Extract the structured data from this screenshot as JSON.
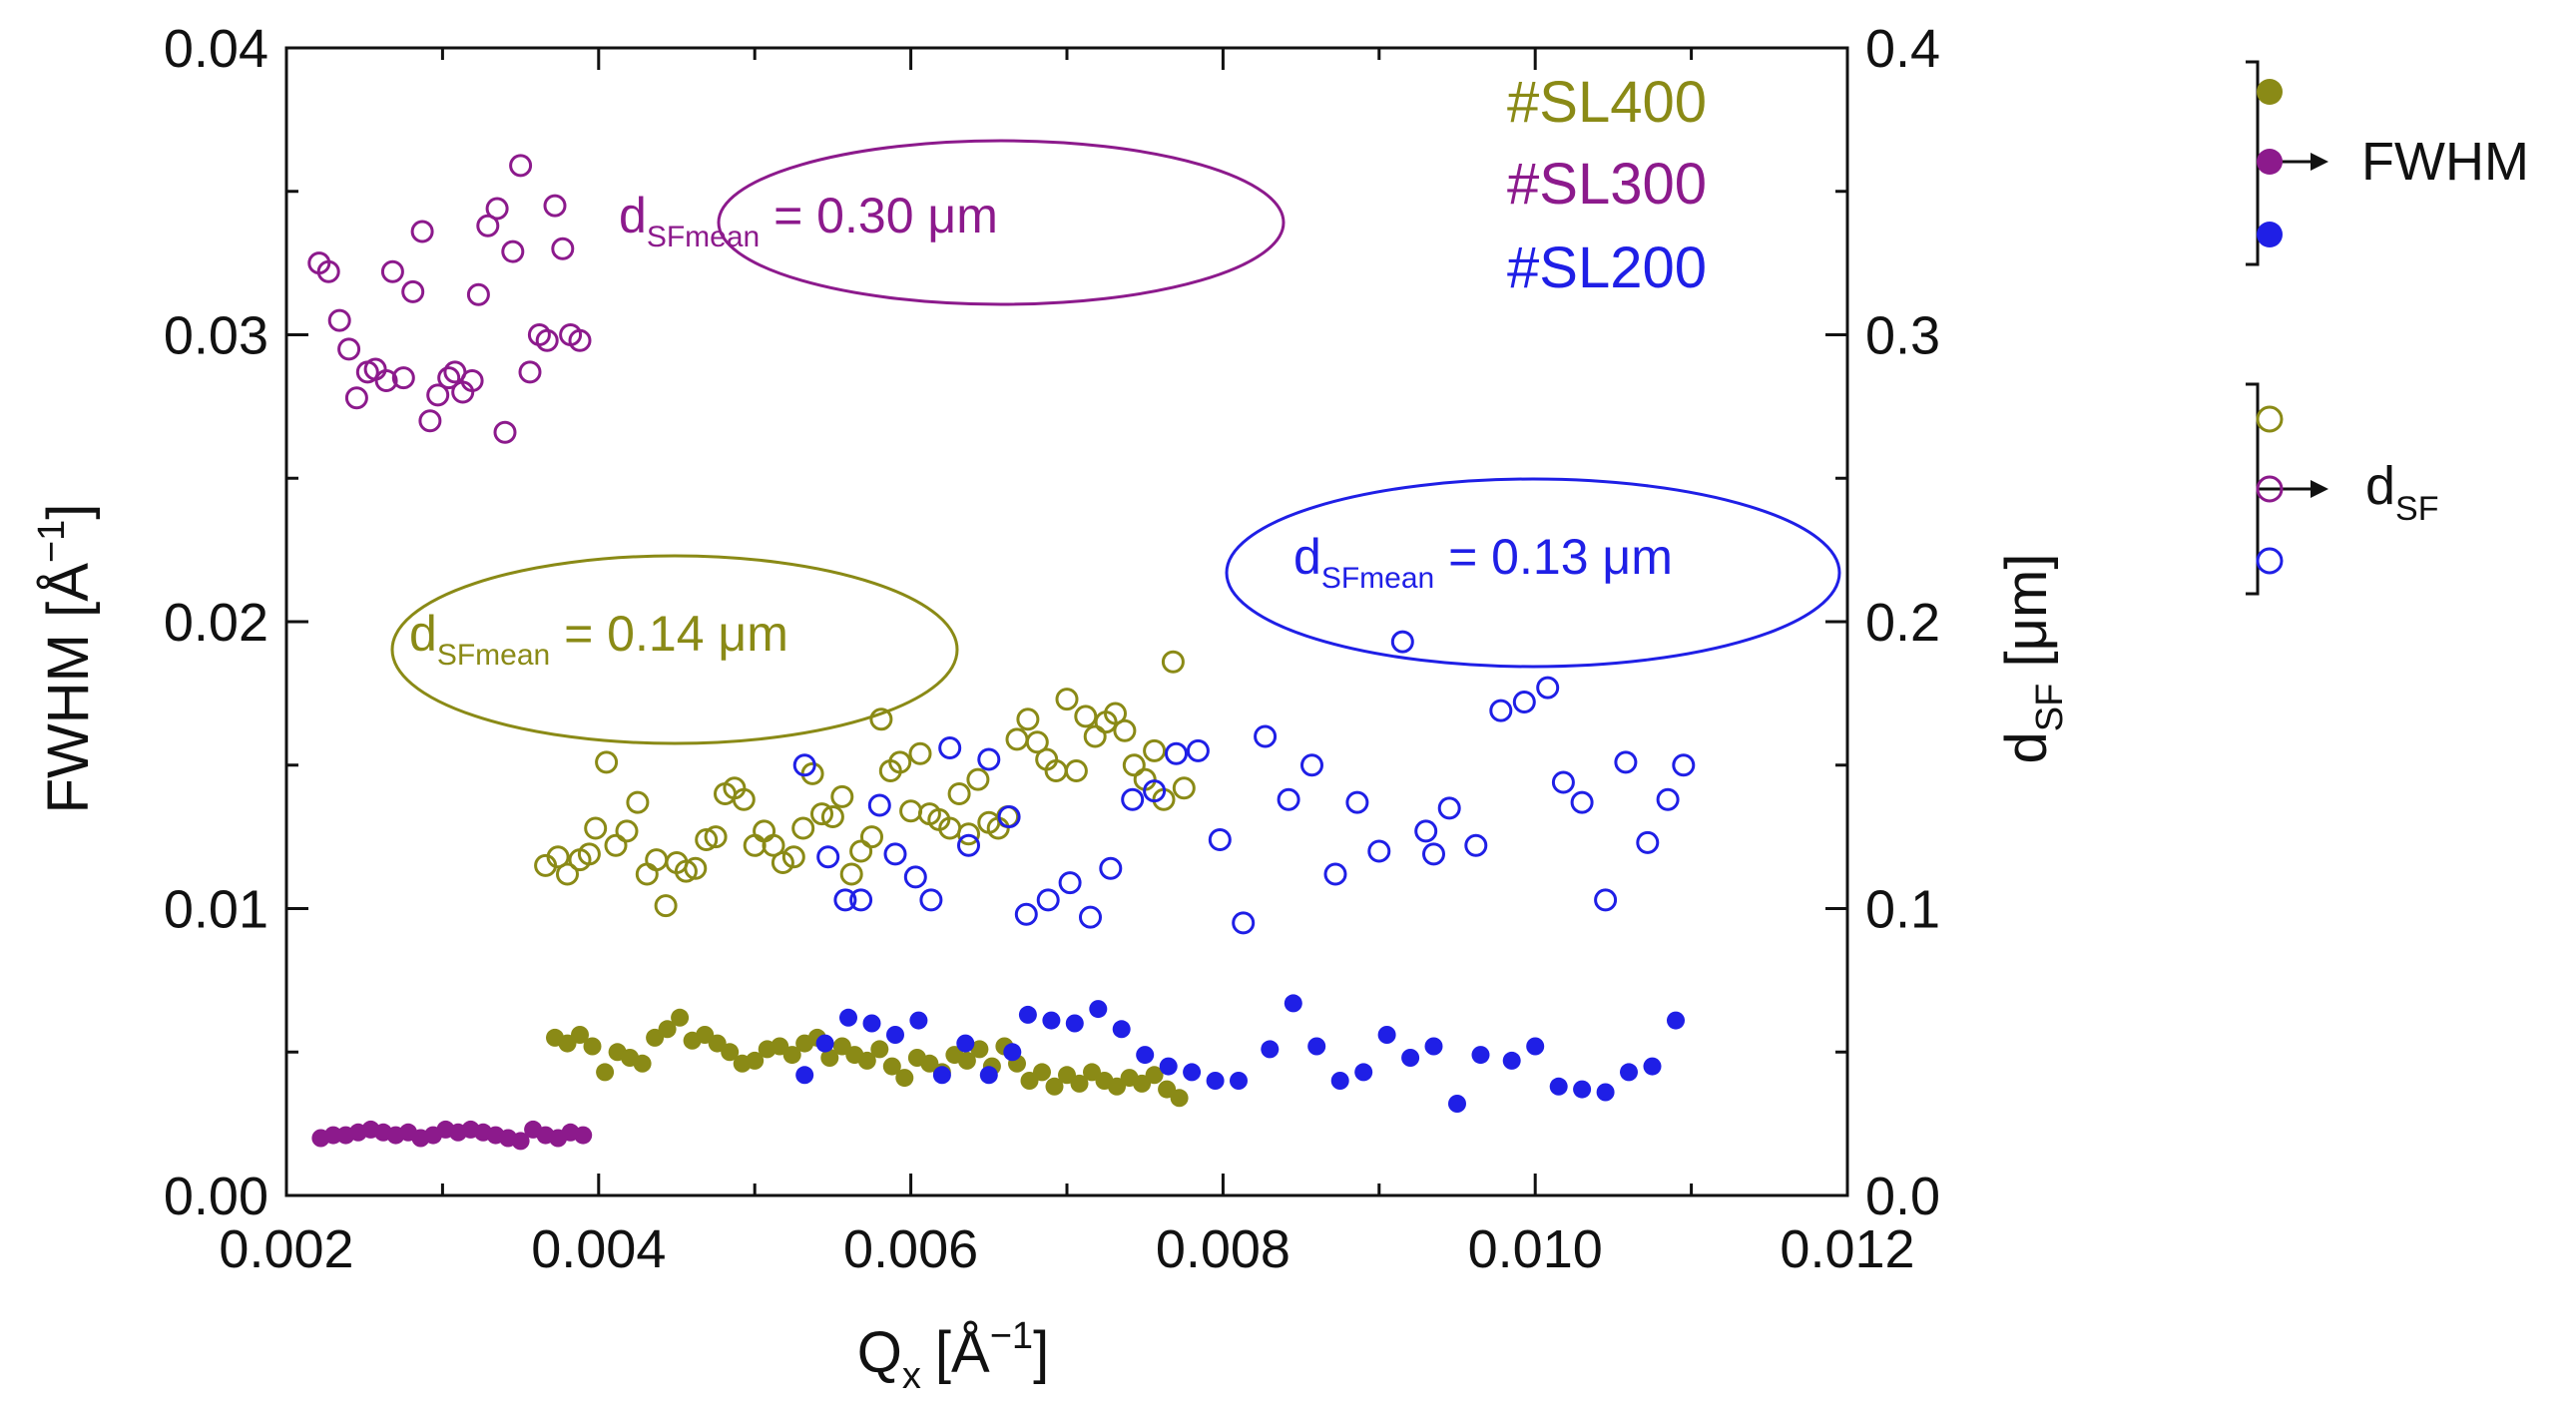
{
  "colors": {
    "sl400": "#8a8a16",
    "sl300": "#8c1a8c",
    "sl200": "#1f1fe6",
    "axis": "#111111"
  },
  "chart_data": {
    "type": "scatter",
    "x_axis": {
      "label": "Q",
      "label_sub": "x",
      "unit": "[Å",
      "unit_sup": "−1",
      "unit_close": "]",
      "lim": [
        0.002,
        0.012
      ],
      "ticks": [
        "0.002",
        "0.004",
        "0.006",
        "0.008",
        "0.010",
        "0.012"
      ]
    },
    "y_left": {
      "label": "FWHM [Å",
      "label_sup": "−1",
      "label_close": "]",
      "lim": [
        0.0,
        0.04
      ],
      "ticks": [
        "0.00",
        "0.01",
        "0.02",
        "0.03",
        "0.04"
      ]
    },
    "y_right": {
      "label": "d",
      "label_sub": "SF",
      "label_rest": " [μm]",
      "lim": [
        0.0,
        0.4
      ],
      "ticks": [
        "0.0",
        "0.1",
        "0.2",
        "0.3",
        "0.4"
      ]
    },
    "legend_inline": [
      {
        "text": "#SL400",
        "series": "sl400"
      },
      {
        "text": "#SL300",
        "series": "sl300"
      },
      {
        "text": "#SL200",
        "series": "sl200"
      }
    ],
    "legend_side": {
      "fwhm_label": "FWHM",
      "dsf_label": "d",
      "dsf_sub": "SF"
    },
    "annotations": [
      {
        "series": "sl300",
        "text_main": "d",
        "text_sub": "SFmean",
        "text_value": " = 0.30 μm"
      },
      {
        "series": "sl400",
        "text_main": "d",
        "text_sub": "SFmean",
        "text_value": " = 0.14 μm"
      },
      {
        "series": "sl200",
        "text_main": "d",
        "text_sub": "SFmean",
        "text_value": " = 0.13 μm"
      }
    ],
    "series": [
      {
        "name": "#SL300 FWHM",
        "color_key": "sl300",
        "filled": true,
        "axis": "left",
        "x": [
          0.00222,
          0.0023,
          0.00238,
          0.00246,
          0.00254,
          0.00262,
          0.0027,
          0.00278,
          0.00286,
          0.00294,
          0.00302,
          0.0031,
          0.00318,
          0.00326,
          0.00334,
          0.00342,
          0.0035,
          0.00358,
          0.00366,
          0.00374,
          0.00382,
          0.0039
        ],
        "y": [
          0.002,
          0.0021,
          0.0021,
          0.0022,
          0.0023,
          0.0022,
          0.0021,
          0.0022,
          0.002,
          0.0021,
          0.0023,
          0.0022,
          0.0023,
          0.0022,
          0.0021,
          0.002,
          0.0019,
          0.0023,
          0.0021,
          0.002,
          0.0022,
          0.0021
        ]
      },
      {
        "name": "#SL300 dSF",
        "color_key": "sl300",
        "filled": false,
        "axis": "right",
        "x": [
          0.00221,
          0.00227,
          0.00234,
          0.0024,
          0.00245,
          0.00252,
          0.00257,
          0.00264,
          0.00268,
          0.00275,
          0.00281,
          0.00287,
          0.00292,
          0.00297,
          0.00304,
          0.00308,
          0.00313,
          0.00319,
          0.00323,
          0.00329,
          0.00335,
          0.0034,
          0.00345,
          0.0035,
          0.00356,
          0.00362,
          0.00367,
          0.00372,
          0.00377,
          0.00382,
          0.00388
        ],
        "y": [
          0.325,
          0.322,
          0.305,
          0.295,
          0.278,
          0.287,
          0.288,
          0.284,
          0.322,
          0.285,
          0.315,
          0.336,
          0.27,
          0.279,
          0.285,
          0.287,
          0.28,
          0.284,
          0.314,
          0.338,
          0.344,
          0.266,
          0.329,
          0.359,
          0.287,
          0.3,
          0.298,
          0.345,
          0.33,
          0.3,
          0.298
        ]
      },
      {
        "name": "#SL400 FWHM",
        "color_key": "sl400",
        "filled": true,
        "axis": "left",
        "x": [
          0.00372,
          0.0038,
          0.00388,
          0.00396,
          0.00404,
          0.00412,
          0.0042,
          0.00428,
          0.00436,
          0.00444,
          0.00452,
          0.0046,
          0.00468,
          0.00476,
          0.00484,
          0.00492,
          0.005,
          0.00508,
          0.00516,
          0.00524,
          0.00532,
          0.0054,
          0.00548,
          0.00556,
          0.00564,
          0.00572,
          0.0058,
          0.00588,
          0.00596,
          0.00604,
          0.00612,
          0.0062,
          0.00628,
          0.00636,
          0.00644,
          0.00652,
          0.0066,
          0.00668,
          0.00676,
          0.00684,
          0.00692,
          0.007,
          0.00708,
          0.00716,
          0.00724,
          0.00732,
          0.0074,
          0.00748,
          0.00756,
          0.00764,
          0.00772
        ],
        "y": [
          0.0055,
          0.0053,
          0.0056,
          0.0052,
          0.0043,
          0.005,
          0.0048,
          0.0046,
          0.0055,
          0.0058,
          0.0062,
          0.0054,
          0.0056,
          0.0053,
          0.005,
          0.0046,
          0.0047,
          0.0051,
          0.0052,
          0.0049,
          0.0053,
          0.0055,
          0.0048,
          0.0052,
          0.0049,
          0.0047,
          0.0051,
          0.0045,
          0.0041,
          0.0048,
          0.0046,
          0.0043,
          0.0049,
          0.0047,
          0.0051,
          0.0045,
          0.0052,
          0.0046,
          0.004,
          0.0043,
          0.0038,
          0.0042,
          0.0039,
          0.0043,
          0.004,
          0.0038,
          0.0041,
          0.0039,
          0.0042,
          0.0037,
          0.0034
        ]
      },
      {
        "name": "#SL400 dSF",
        "color_key": "sl400",
        "filled": false,
        "axis": "right",
        "x": [
          0.00366,
          0.00374,
          0.0038,
          0.00388,
          0.00394,
          0.00398,
          0.00405,
          0.00411,
          0.00418,
          0.00425,
          0.00431,
          0.00437,
          0.00443,
          0.0045,
          0.00456,
          0.00462,
          0.00469,
          0.00475,
          0.00481,
          0.00487,
          0.00493,
          0.005,
          0.00506,
          0.00512,
          0.00518,
          0.00525,
          0.00531,
          0.00537,
          0.00543,
          0.0055,
          0.00556,
          0.00562,
          0.00568,
          0.00575,
          0.00581,
          0.00587,
          0.00593,
          0.006,
          0.00606,
          0.00612,
          0.00618,
          0.00625,
          0.00631,
          0.00637,
          0.00643,
          0.0065,
          0.00656,
          0.00662,
          0.00668,
          0.00675,
          0.00681,
          0.00687,
          0.00693,
          0.007,
          0.00706,
          0.00712,
          0.00718,
          0.00725,
          0.00731,
          0.00737,
          0.00743,
          0.0075,
          0.00756,
          0.00762,
          0.00768,
          0.00775
        ],
        "y": [
          0.115,
          0.118,
          0.112,
          0.117,
          0.119,
          0.128,
          0.151,
          0.122,
          0.127,
          0.137,
          0.112,
          0.117,
          0.101,
          0.116,
          0.113,
          0.114,
          0.124,
          0.125,
          0.14,
          0.142,
          0.138,
          0.122,
          0.127,
          0.122,
          0.116,
          0.118,
          0.128,
          0.147,
          0.133,
          0.132,
          0.139,
          0.112,
          0.12,
          0.125,
          0.166,
          0.148,
          0.151,
          0.134,
          0.154,
          0.133,
          0.131,
          0.128,
          0.14,
          0.126,
          0.145,
          0.13,
          0.128,
          0.132,
          0.159,
          0.166,
          0.158,
          0.152,
          0.148,
          0.173,
          0.148,
          0.167,
          0.16,
          0.165,
          0.168,
          0.162,
          0.15,
          0.145,
          0.155,
          0.138,
          0.186,
          0.142
        ]
      },
      {
        "name": "#SL200 FWHM",
        "color_key": "sl200",
        "filled": true,
        "axis": "left",
        "x": [
          0.00532,
          0.00545,
          0.0056,
          0.00575,
          0.0059,
          0.00605,
          0.0062,
          0.00635,
          0.0065,
          0.00665,
          0.00675,
          0.0069,
          0.00705,
          0.0072,
          0.00735,
          0.0075,
          0.00765,
          0.0078,
          0.00795,
          0.0081,
          0.0083,
          0.00845,
          0.0086,
          0.00875,
          0.0089,
          0.00905,
          0.0092,
          0.00935,
          0.0095,
          0.00965,
          0.00985,
          0.01,
          0.01015,
          0.0103,
          0.01045,
          0.0106,
          0.01075,
          0.0109
        ],
        "y": [
          0.0042,
          0.0053,
          0.0062,
          0.006,
          0.0056,
          0.0061,
          0.0042,
          0.0053,
          0.0042,
          0.005,
          0.0063,
          0.0061,
          0.006,
          0.0065,
          0.0058,
          0.0049,
          0.0045,
          0.0043,
          0.004,
          0.004,
          0.0051,
          0.0067,
          0.0052,
          0.004,
          0.0043,
          0.0056,
          0.0048,
          0.0052,
          0.0032,
          0.0049,
          0.0047,
          0.0052,
          0.0038,
          0.0037,
          0.0036,
          0.0043,
          0.0045,
          0.0061
        ]
      },
      {
        "name": "#SL200 dSF",
        "color_key": "sl200",
        "filled": false,
        "axis": "right",
        "x": [
          0.00532,
          0.00547,
          0.00558,
          0.00568,
          0.0058,
          0.0059,
          0.00603,
          0.00613,
          0.00625,
          0.00637,
          0.0065,
          0.00663,
          0.00674,
          0.00688,
          0.00702,
          0.00715,
          0.00728,
          0.00742,
          0.00756,
          0.0077,
          0.00784,
          0.00798,
          0.00813,
          0.00827,
          0.00842,
          0.00857,
          0.00872,
          0.00886,
          0.009,
          0.00915,
          0.0093,
          0.00935,
          0.00945,
          0.00962,
          0.00978,
          0.00993,
          0.01008,
          0.01018,
          0.0103,
          0.01045,
          0.01058,
          0.01072,
          0.01085,
          0.01095
        ],
        "y": [
          0.15,
          0.118,
          0.103,
          0.103,
          0.136,
          0.119,
          0.111,
          0.103,
          0.156,
          0.122,
          0.152,
          0.132,
          0.098,
          0.103,
          0.109,
          0.097,
          0.114,
          0.138,
          0.141,
          0.154,
          0.155,
          0.124,
          0.095,
          0.16,
          0.138,
          0.15,
          0.112,
          0.137,
          0.12,
          0.193,
          0.127,
          0.119,
          0.135,
          0.122,
          0.169,
          0.172,
          0.177,
          0.144,
          0.137,
          0.103,
          0.151,
          0.123,
          0.138,
          0.15
        ]
      }
    ]
  }
}
